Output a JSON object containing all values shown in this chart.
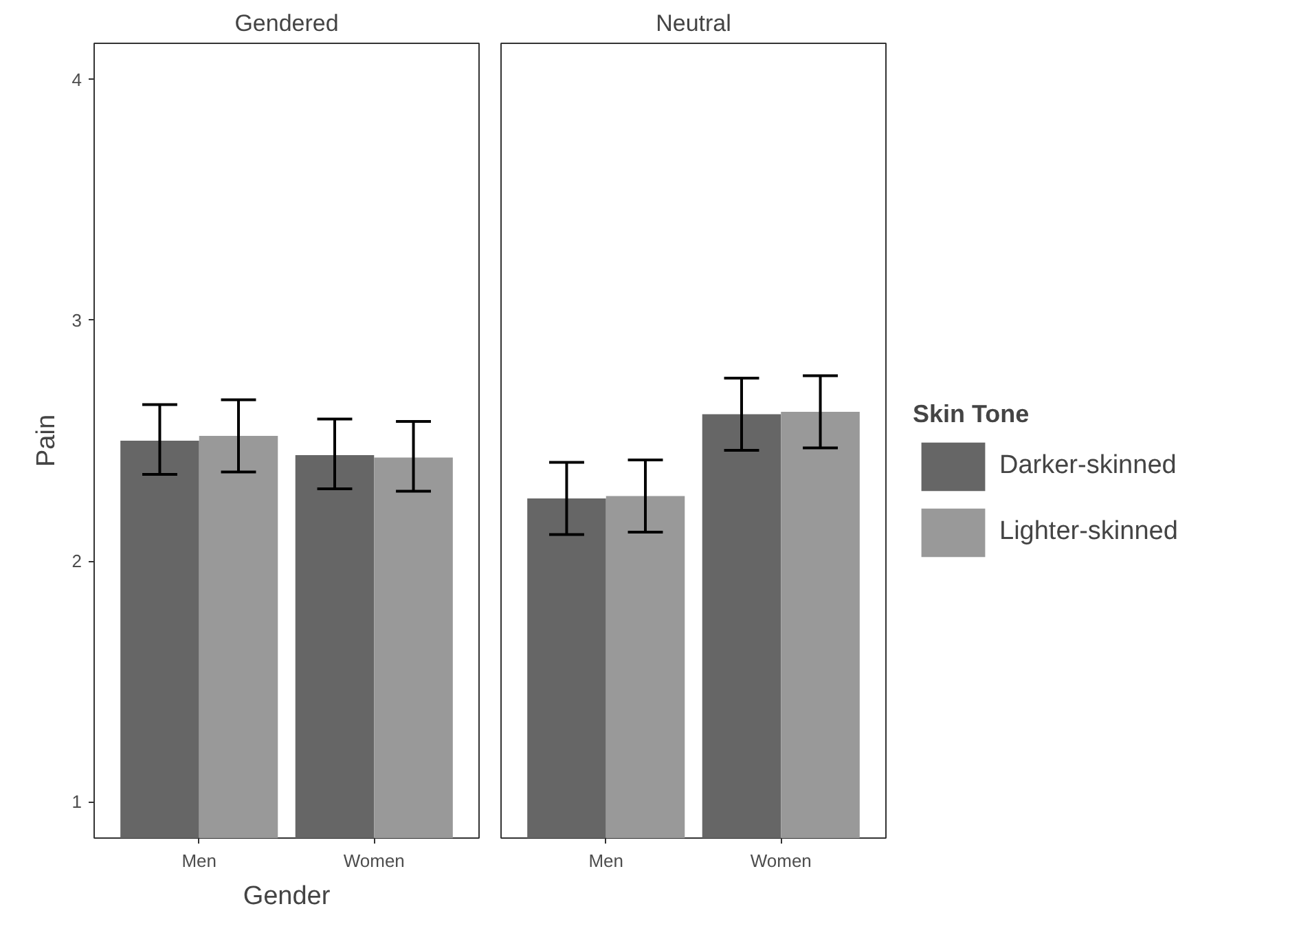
{
  "chart_data": [
    {
      "type": "bar",
      "title": "Gendered",
      "xlabel": "Gender",
      "ylabel": "Pain",
      "categories": [
        "Men",
        "Women"
      ],
      "ylim": [
        0.85,
        4.15
      ],
      "yticks": [
        1,
        2,
        3,
        4
      ],
      "grid": false,
      "legend": false,
      "series": [
        {
          "color": "#666666",
          "values": [
            2.5,
            2.44
          ],
          "errors": [
            [
              2.36,
              2.65
            ],
            [
              2.3,
              2.59
            ]
          ]
        },
        {
          "color": "#999999",
          "values": [
            2.52,
            2.43
          ],
          "errors": [
            [
              2.37,
              2.67
            ],
            [
              2.29,
              2.58
            ]
          ]
        }
      ]
    },
    {
      "type": "bar",
      "title": "Neutral",
      "legend_title": "Skin Tone",
      "categories": [
        "Men",
        "Women"
      ],
      "ylim": [
        0.85,
        4.15
      ],
      "yticks": [
        1,
        2,
        3,
        4
      ],
      "grid": false,
      "legend": "right",
      "tick_labels": "x",
      "series": [
        {
          "name": "Darker-skinned",
          "color": "#666666",
          "values": [
            2.26,
            2.61
          ],
          "errors": [
            [
              2.11,
              2.41
            ],
            [
              2.46,
              2.76
            ]
          ]
        },
        {
          "name": "Lighter-skinned",
          "color": "#999999",
          "values": [
            2.27,
            2.62
          ],
          "errors": [
            [
              2.12,
              2.42
            ],
            [
              2.47,
              2.77
            ]
          ]
        }
      ]
    }
  ]
}
